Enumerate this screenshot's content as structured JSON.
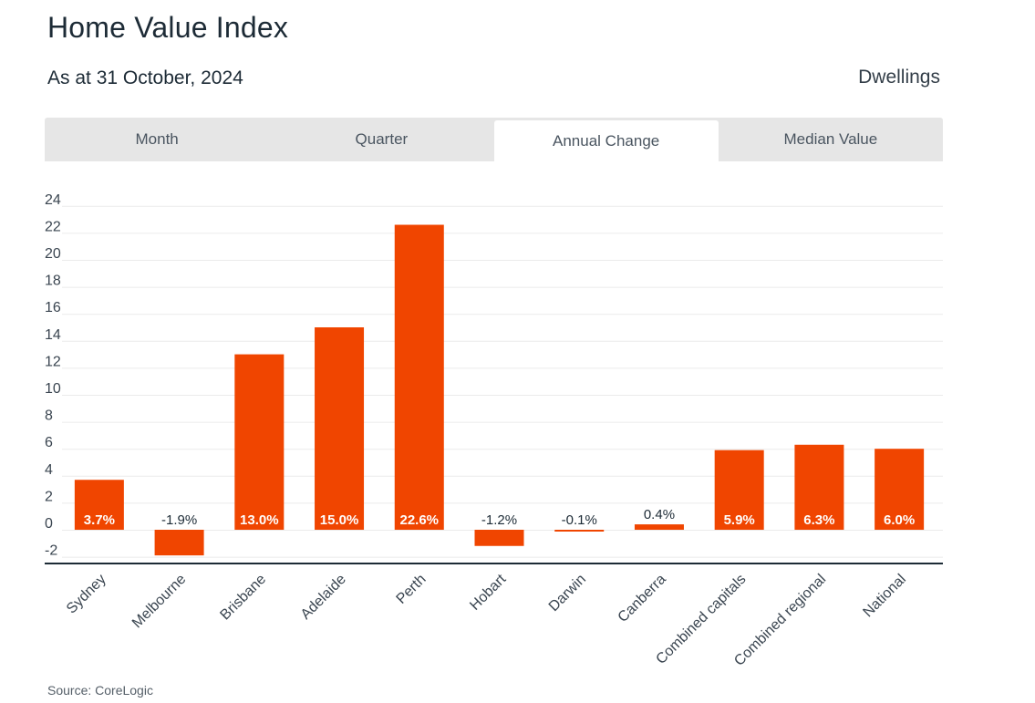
{
  "header": {
    "title": "Home Value Index",
    "subtitle": "As at 31 October, 2024",
    "dwellings_label": "Dwellings"
  },
  "tabs": [
    {
      "label": "Month",
      "active": false
    },
    {
      "label": "Quarter",
      "active": false
    },
    {
      "label": "Annual Change",
      "active": true
    },
    {
      "label": "Median Value",
      "active": false
    }
  ],
  "footer": {
    "source": "Source: CoreLogic"
  },
  "chart_data": {
    "type": "bar",
    "categories": [
      "Sydney",
      "Melbourne",
      "Brisbane",
      "Adelaide",
      "Perth",
      "Hobart",
      "Darwin",
      "Canberra",
      "Combined capitals",
      "Combined regional",
      "National"
    ],
    "values": [
      3.7,
      -1.9,
      13.0,
      15.0,
      22.6,
      -1.2,
      -0.1,
      0.4,
      5.9,
      6.3,
      6.0
    ],
    "data_labels": [
      "3.7%",
      "-1.9%",
      "13.0%",
      "15.0%",
      "22.6%",
      "-1.2%",
      "-0.1%",
      "0.4%",
      "5.9%",
      "6.3%",
      "6.0%"
    ],
    "yticks": [
      24,
      22,
      20,
      18,
      16,
      14,
      12,
      10,
      8,
      6,
      4,
      2,
      0,
      -2
    ],
    "ylim": [
      -2.5,
      24
    ],
    "bar_color": "#f04500",
    "grid": true,
    "legend": "none"
  }
}
